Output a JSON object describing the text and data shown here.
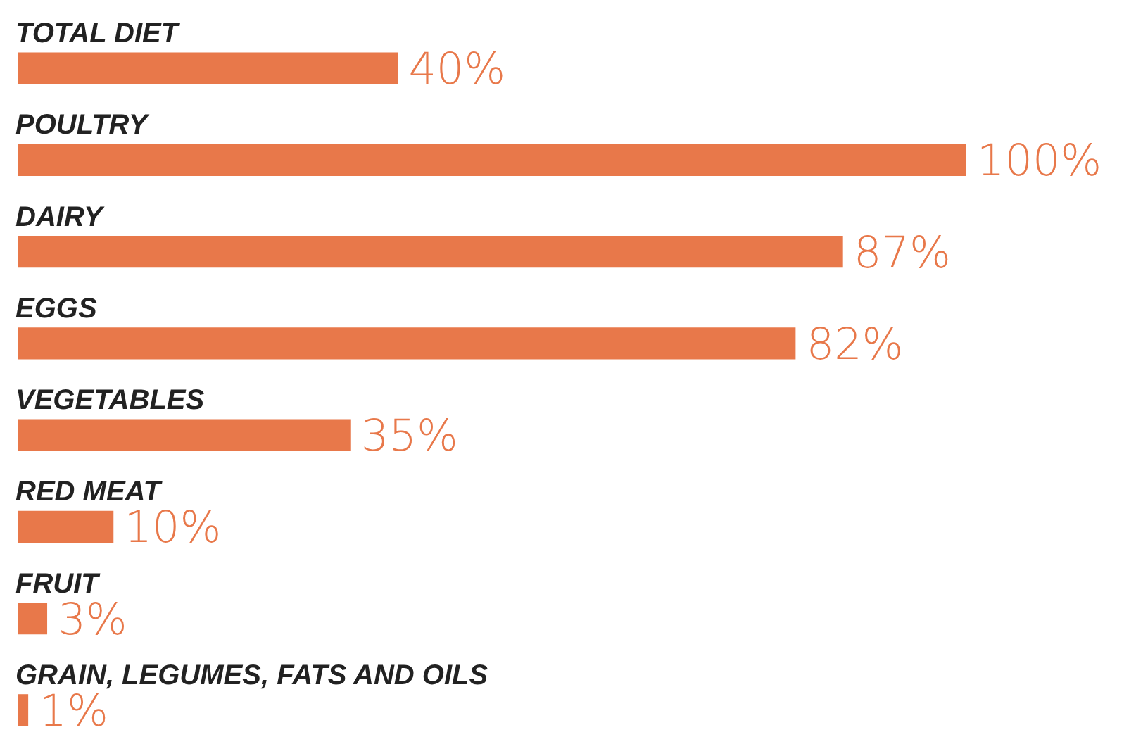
{
  "chart_data": {
    "type": "bar",
    "orientation": "horizontal",
    "categories": [
      "TOTAL DIET",
      "POULTRY",
      "DAIRY",
      "EGGS",
      "VEGETABLES",
      "RED MEAT",
      "FRUIT",
      "GRAIN, LEGUMES, FATS AND OILS"
    ],
    "values": [
      40,
      100,
      87,
      82,
      35,
      10,
      3,
      1
    ],
    "value_labels": [
      "40%",
      "100%",
      "87%",
      "82%",
      "35%",
      "10%",
      "3%",
      "1%"
    ],
    "color": "#e8784a"
  }
}
